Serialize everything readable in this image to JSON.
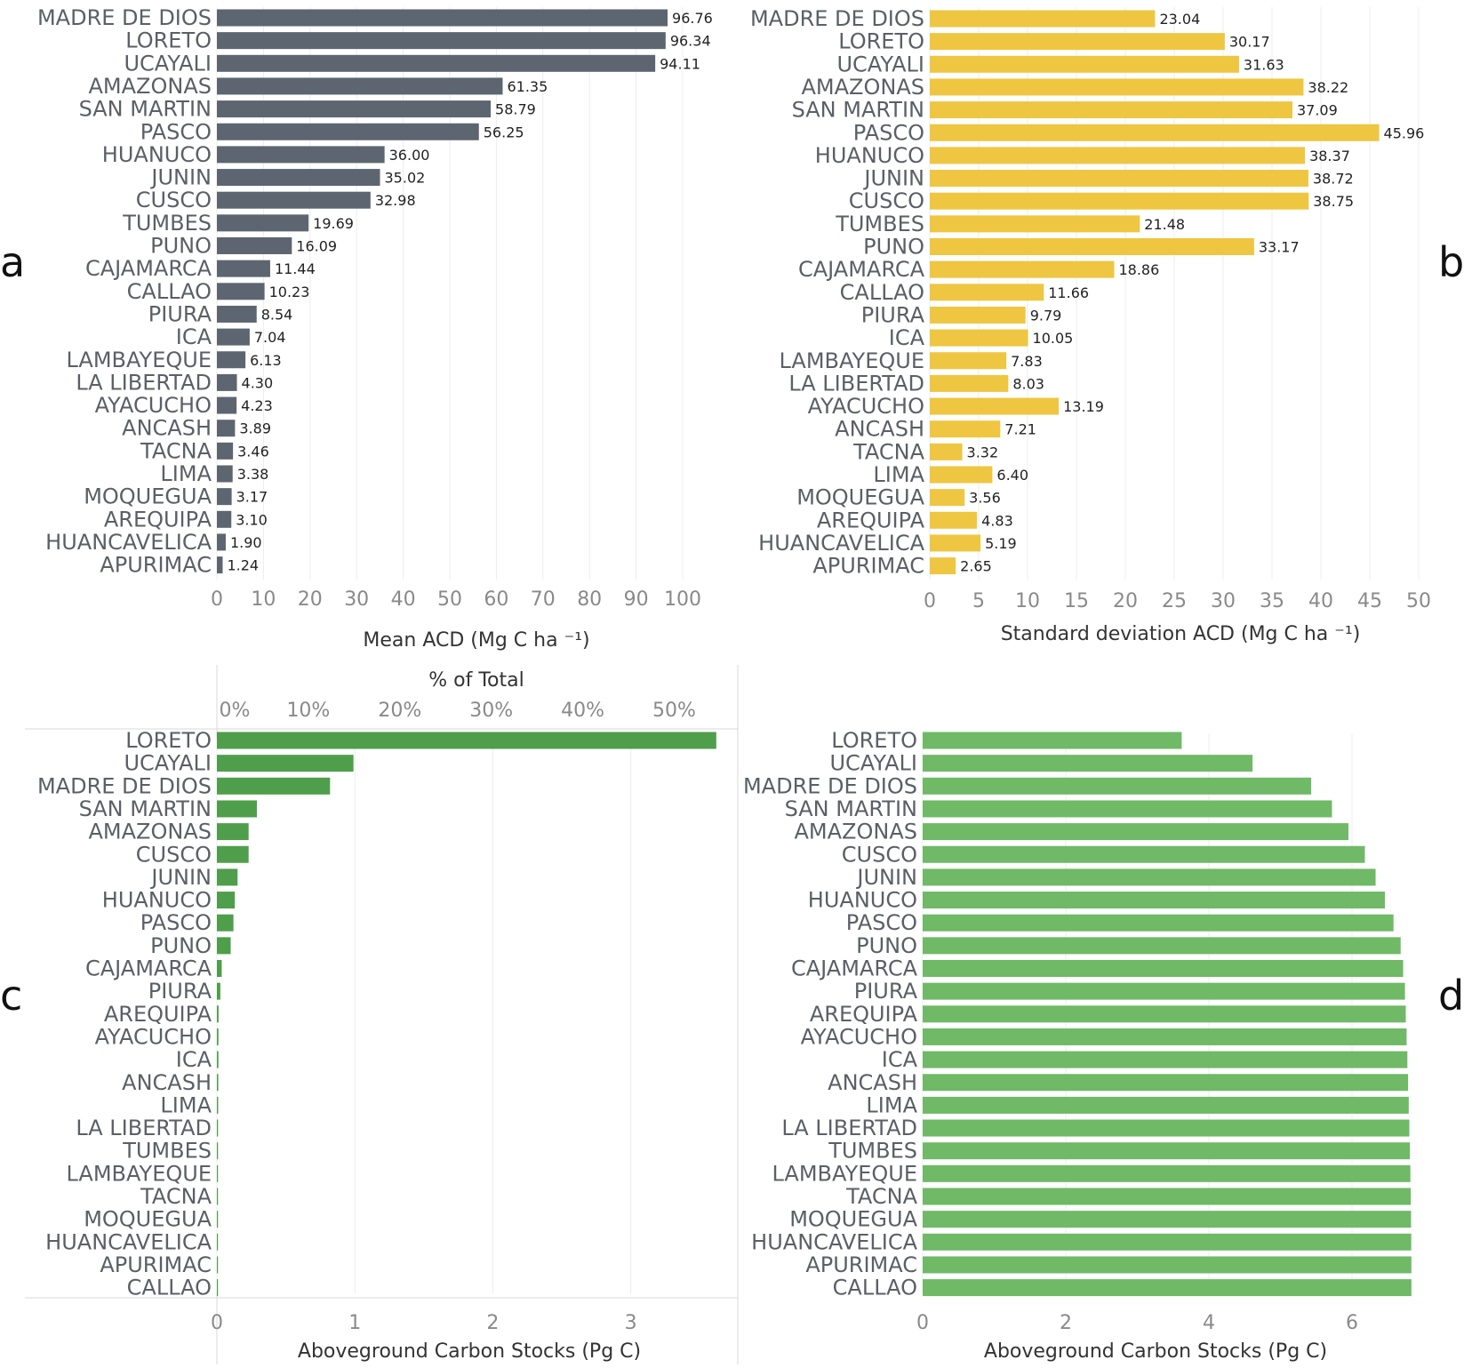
{
  "chart_data": [
    {
      "panel": "a",
      "type": "bar",
      "orientation": "horizontal",
      "color": "#5d6670",
      "categories": [
        "MADRE DE DIOS",
        "LORETO",
        "UCAYALI",
        "AMAZONAS",
        "SAN MARTIN",
        "PASCO",
        "HUANUCO",
        "JUNIN",
        "CUSCO",
        "TUMBES",
        "PUNO",
        "CAJAMARCA",
        "CALLAO",
        "PIURA",
        "ICA",
        "LAMBAYEQUE",
        "LA LIBERTAD",
        "AYACUCHO",
        "ANCASH",
        "TACNA",
        "LIMA",
        "MOQUEGUA",
        "AREQUIPA",
        "HUANCAVELICA",
        "APURIMAC"
      ],
      "values": [
        96.76,
        96.34,
        94.11,
        61.35,
        58.79,
        56.25,
        36.0,
        35.02,
        32.98,
        19.69,
        16.09,
        11.44,
        10.23,
        8.54,
        7.04,
        6.13,
        4.3,
        4.23,
        3.89,
        3.46,
        3.38,
        3.17,
        3.1,
        1.9,
        1.24
      ],
      "value_labels": [
        "96.76",
        "96.34",
        "94.11",
        "61.35",
        "58.79",
        "56.25",
        "36.00",
        "35.02",
        "32.98",
        "19.69",
        "16.09",
        "11.44",
        "10.23",
        "8.54",
        "7.04",
        "6.13",
        "4.30",
        "4.23",
        "3.89",
        "3.46",
        "3.38",
        "3.17",
        "3.10",
        "1.90",
        "1.24"
      ],
      "xlim": [
        0,
        110
      ],
      "xticks": [
        0,
        10,
        20,
        30,
        40,
        50,
        60,
        70,
        80,
        90,
        100
      ],
      "xtick_labels": [
        "0",
        "10",
        "20",
        "30",
        "40",
        "50",
        "60",
        "70",
        "80",
        "90",
        "100"
      ],
      "xlabel": "Mean ACD (Mg C ha ⁻¹)",
      "title": ""
    },
    {
      "panel": "b",
      "type": "bar",
      "orientation": "horizontal",
      "color": "#eec641",
      "categories": [
        "MADRE DE DIOS",
        "LORETO",
        "UCAYALI",
        "AMAZONAS",
        "SAN MARTIN",
        "PASCO",
        "HUANUCO",
        "JUNIN",
        "CUSCO",
        "TUMBES",
        "PUNO",
        "CAJAMARCA",
        "CALLAO",
        "PIURA",
        "ICA",
        "LAMBAYEQUE",
        "LA LIBERTAD",
        "AYACUCHO",
        "ANCASH",
        "TACNA",
        "LIMA",
        "MOQUEGUA",
        "AREQUIPA",
        "HUANCAVELICA",
        "APURIMAC"
      ],
      "values": [
        23.04,
        30.17,
        31.63,
        38.22,
        37.09,
        45.96,
        38.37,
        38.72,
        38.75,
        21.48,
        33.17,
        18.86,
        11.66,
        9.79,
        10.05,
        7.83,
        8.03,
        13.19,
        7.21,
        3.32,
        6.4,
        3.56,
        4.83,
        5.19,
        2.65
      ],
      "value_labels": [
        "23.04",
        "30.17",
        "31.63",
        "38.22",
        "37.09",
        "45.96",
        "38.37",
        "38.72",
        "38.75",
        "21.48",
        "33.17",
        "18.86",
        "11.66",
        "9.79",
        "10.05",
        "7.83",
        "8.03",
        "13.19",
        "7.21",
        "3.32",
        "6.40",
        "3.56",
        "4.83",
        "5.19",
        "2.65"
      ],
      "xlim": [
        0,
        52
      ],
      "xticks": [
        0,
        5,
        10,
        15,
        20,
        25,
        30,
        35,
        40,
        45,
        50
      ],
      "xtick_labels": [
        "0",
        "5",
        "10",
        "15",
        "20",
        "25",
        "30",
        "35",
        "40",
        "45",
        "50"
      ],
      "xlabel": "Standard deviation ACD (Mg C ha ⁻¹)",
      "title": ""
    },
    {
      "panel": "c",
      "type": "bar",
      "orientation": "horizontal",
      "color": "#4f9e4b",
      "categories": [
        "LORETO",
        "UCAYALI",
        "MADRE DE DIOS",
        "SAN MARTIN",
        "AMAZONAS",
        "CUSCO",
        "JUNIN",
        "HUANUCO",
        "PASCO",
        "PUNO",
        "CAJAMARCA",
        "PIURA",
        "AREQUIPA",
        "AYACUCHO",
        "ICA",
        "ANCASH",
        "LIMA",
        "LA LIBERTAD",
        "TUMBES",
        "LAMBAYEQUE",
        "TACNA",
        "MOQUEGUA",
        "HUANCAVELICA",
        "APURIMAC",
        "CALLAO"
      ],
      "values": [
        3.62,
        0.99,
        0.82,
        0.29,
        0.23,
        0.23,
        0.15,
        0.13,
        0.12,
        0.1,
        0.035,
        0.025,
        0.012,
        0.011,
        0.011,
        0.01,
        0.009,
        0.008,
        0.008,
        0.007,
        0.005,
        0.004,
        0.003,
        0.002,
        0.0005
      ],
      "xlim": [
        0,
        3.75
      ],
      "xticks": [
        0,
        1,
        2,
        3
      ],
      "xtick_labels": [
        "0",
        "1",
        "2",
        "3"
      ],
      "xlabel": "Aboveground Carbon Stocks (Pg C)",
      "top_axis": {
        "title": "% of Total",
        "max_percent": 54.6,
        "ticks": [
          0,
          10,
          20,
          30,
          40,
          50
        ],
        "tick_labels": [
          "0%",
          "10%",
          "20%",
          "30%",
          "40%",
          "50%"
        ]
      },
      "title": ""
    },
    {
      "panel": "d",
      "type": "bar",
      "orientation": "horizontal",
      "cumulative": true,
      "color": "#6fb967",
      "categories": [
        "LORETO",
        "UCAYALI",
        "MADRE DE DIOS",
        "SAN MARTIN",
        "AMAZONAS",
        "CUSCO",
        "JUNIN",
        "HUANUCO",
        "PASCO",
        "PUNO",
        "CAJAMARCA",
        "PIURA",
        "AREQUIPA",
        "AYACUCHO",
        "ICA",
        "ANCASH",
        "LIMA",
        "LA LIBERTAD",
        "TUMBES",
        "LAMBAYEQUE",
        "TACNA",
        "MOQUEGUA",
        "HUANCAVELICA",
        "APURIMAC",
        "CALLAO"
      ],
      "values": [
        3.62,
        4.61,
        5.43,
        5.72,
        5.95,
        6.18,
        6.33,
        6.46,
        6.58,
        6.68,
        6.715,
        6.74,
        6.752,
        6.763,
        6.774,
        6.784,
        6.793,
        6.801,
        6.809,
        6.816,
        6.821,
        6.825,
        6.828,
        6.83,
        6.8305
      ],
      "xlim": [
        0,
        7.2
      ],
      "xticks": [
        0,
        2,
        4,
        6
      ],
      "xtick_labels": [
        "0",
        "2",
        "4",
        "6"
      ],
      "xlabel": "Aboveground Carbon Stocks (Pg C)",
      "title": ""
    }
  ],
  "panel_labels": {
    "a": "a",
    "b": "b",
    "c": "c",
    "d": "d"
  }
}
